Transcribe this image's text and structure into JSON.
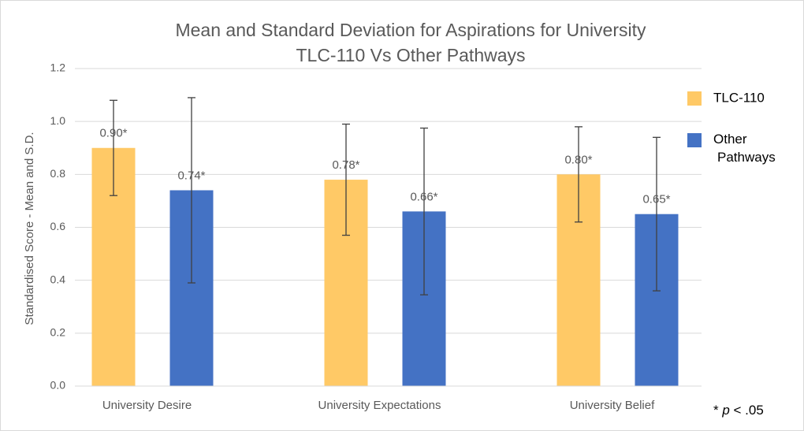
{
  "chart_data": {
    "type": "bar",
    "title": [
      "Mean and Standard Deviation for Aspirations for University",
      "TLC-110 Vs Other Pathways"
    ],
    "ylabel": "Standardised Score -  Mean and S.D.",
    "categories": [
      "University Desire",
      "University Expectations",
      "University Belief"
    ],
    "series": [
      {
        "name": "TLC-110",
        "color": "#ffc966",
        "values": [
          0.9,
          0.78,
          0.8
        ],
        "value_labels": [
          "0.90*",
          "0.78*",
          "0.80*"
        ],
        "errors": [
          0.18,
          0.21,
          0.18
        ]
      },
      {
        "name": "Other Pathways",
        "color": "#4472c4",
        "values": [
          0.74,
          0.66,
          0.65
        ],
        "value_labels": [
          "0.74*",
          "0.66*",
          "0.65*"
        ],
        "errors": [
          0.35,
          0.315,
          0.29
        ]
      }
    ],
    "ylim": [
      0,
      1.2
    ],
    "yticks": [
      {
        "value": 0,
        "label": "0.0"
      },
      0.2,
      0.4,
      0.6,
      0.8,
      {
        "value": 1,
        "label": "1.0"
      },
      1.2
    ],
    "grid": true,
    "legend": "right",
    "footnote": {
      "prefix": "* ",
      "italic": "p",
      "suffix": " < .05"
    }
  }
}
